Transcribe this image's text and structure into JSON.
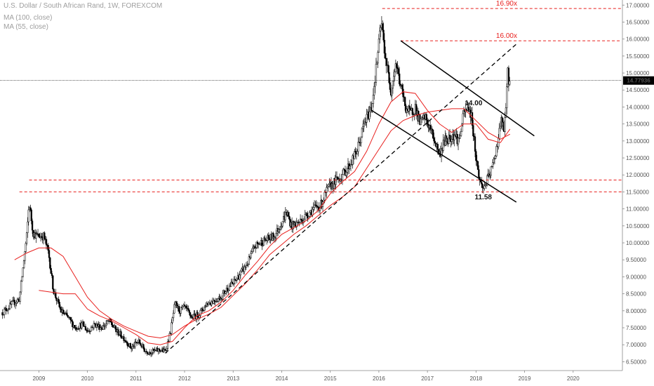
{
  "legend": {
    "title": "U.S. Dollar / South African Rand, 1W, FOREXCOM",
    "ma100": "MA (100, close)",
    "ma55": "MA (55, close)"
  },
  "colors": {
    "candle": "#000000",
    "ma": "#e8201e",
    "level": "#e8201e",
    "trend": "#000000",
    "price_tag_bg": "#000000",
    "price_tag_text": "#ffffff"
  },
  "chart_data": {
    "type": "candlestick",
    "title": "U.S. Dollar / South African Rand, 1W, FOREXCOM",
    "xlim": [
      2008.2,
      2021.0
    ],
    "ylim": [
      6.24,
      17.15
    ],
    "x_ticks": [
      "2009",
      "2010",
      "2011",
      "2012",
      "2013",
      "2014",
      "2015",
      "2016",
      "2017",
      "2018",
      "2019",
      "2020"
    ],
    "y_ticks": [
      "17.00000",
      "16.50000",
      "16.00000",
      "15.50000",
      "15.00000",
      "14.50000",
      "14.00000",
      "13.50000",
      "13.00000",
      "12.50000",
      "12.00000",
      "11.50000",
      "11.00000",
      "10.50000",
      "10.00000",
      "9.50000",
      "9.00000",
      "8.50000",
      "8.00000",
      "7.50000",
      "7.00000",
      "6.50000"
    ],
    "last_price": "14.77936",
    "close_path": [
      [
        2008.25,
        7.95
      ],
      [
        2008.45,
        8.2
      ],
      [
        2008.6,
        8.35
      ],
      [
        2008.75,
        10.2
      ],
      [
        2008.8,
        11.2
      ],
      [
        2008.88,
        10.3
      ],
      [
        2008.95,
        10.2
      ],
      [
        2009.1,
        10.2
      ],
      [
        2009.2,
        9.7
      ],
      [
        2009.3,
        8.6
      ],
      [
        2009.45,
        8.0
      ],
      [
        2009.6,
        7.8
      ],
      [
        2009.75,
        7.5
      ],
      [
        2009.9,
        7.6
      ],
      [
        2010.0,
        7.4
      ],
      [
        2010.15,
        7.6
      ],
      [
        2010.3,
        7.5
      ],
      [
        2010.45,
        7.7
      ],
      [
        2010.6,
        7.4
      ],
      [
        2010.75,
        7.2
      ],
      [
        2010.9,
        6.9
      ],
      [
        2011.05,
        7.1
      ],
      [
        2011.2,
        6.8
      ],
      [
        2011.35,
        6.8
      ],
      [
        2011.5,
        6.85
      ],
      [
        2011.6,
        6.8
      ],
      [
        2011.7,
        7.3
      ],
      [
        2011.8,
        8.2
      ],
      [
        2011.9,
        8.0
      ],
      [
        2012.0,
        8.1
      ],
      [
        2012.15,
        7.8
      ],
      [
        2012.3,
        7.9
      ],
      [
        2012.45,
        8.2
      ],
      [
        2012.6,
        8.3
      ],
      [
        2012.75,
        8.4
      ],
      [
        2012.9,
        8.7
      ],
      [
        2013.0,
        8.8
      ],
      [
        2013.15,
        9.1
      ],
      [
        2013.3,
        9.4
      ],
      [
        2013.45,
        9.9
      ],
      [
        2013.55,
        10.0
      ],
      [
        2013.7,
        10.1
      ],
      [
        2013.85,
        10.2
      ],
      [
        2014.0,
        10.6
      ],
      [
        2014.1,
        10.9
      ],
      [
        2014.2,
        10.5
      ],
      [
        2014.35,
        10.6
      ],
      [
        2014.5,
        10.8
      ],
      [
        2014.65,
        11.0
      ],
      [
        2014.8,
        11.1
      ],
      [
        2014.95,
        11.6
      ],
      [
        2015.1,
        11.8
      ],
      [
        2015.25,
        12.0
      ],
      [
        2015.4,
        12.3
      ],
      [
        2015.55,
        12.7
      ],
      [
        2015.7,
        13.5
      ],
      [
        2015.85,
        14.0
      ],
      [
        2015.95,
        15.2
      ],
      [
        2016.05,
        16.5
      ],
      [
        2016.15,
        15.3
      ],
      [
        2016.25,
        14.5
      ],
      [
        2016.35,
        15.3
      ],
      [
        2016.45,
        14.6
      ],
      [
        2016.55,
        14.0
      ],
      [
        2016.65,
        13.8
      ],
      [
        2016.75,
        14.0
      ],
      [
        2016.85,
        13.5
      ],
      [
        2016.95,
        13.7
      ],
      [
        2017.1,
        13.2
      ],
      [
        2017.25,
        12.6
      ],
      [
        2017.35,
        13.0
      ],
      [
        2017.45,
        13.1
      ],
      [
        2017.55,
        13.2
      ],
      [
        2017.65,
        13.0
      ],
      [
        2017.75,
        13.8
      ],
      [
        2017.85,
        14.0
      ],
      [
        2017.92,
        13.6
      ],
      [
        2018.0,
        12.5
      ],
      [
        2018.08,
        11.8
      ],
      [
        2018.15,
        11.6
      ],
      [
        2018.25,
        11.9
      ],
      [
        2018.35,
        12.3
      ],
      [
        2018.45,
        13.0
      ],
      [
        2018.52,
        13.6
      ],
      [
        2018.58,
        13.3
      ],
      [
        2018.63,
        14.3
      ],
      [
        2018.66,
        15.2
      ],
      [
        2018.68,
        14.6
      ],
      [
        2018.7,
        14.77936
      ]
    ],
    "ma100": [
      [
        2008.5,
        9.5
      ],
      [
        2008.75,
        9.7
      ],
      [
        2009.0,
        9.85
      ],
      [
        2009.25,
        9.85
      ],
      [
        2009.5,
        9.6
      ],
      [
        2009.75,
        9.0
      ],
      [
        2010.0,
        8.4
      ],
      [
        2010.25,
        8.0
      ],
      [
        2010.5,
        7.75
      ],
      [
        2010.75,
        7.55
      ],
      [
        2011.0,
        7.4
      ],
      [
        2011.25,
        7.25
      ],
      [
        2011.5,
        7.2
      ],
      [
        2011.75,
        7.3
      ],
      [
        2012.0,
        7.55
      ],
      [
        2012.25,
        7.75
      ],
      [
        2012.5,
        7.9
      ],
      [
        2012.75,
        8.1
      ],
      [
        2013.0,
        8.45
      ],
      [
        2013.25,
        8.8
      ],
      [
        2013.5,
        9.2
      ],
      [
        2013.75,
        9.65
      ],
      [
        2014.0,
        9.95
      ],
      [
        2014.25,
        10.25
      ],
      [
        2014.5,
        10.5
      ],
      [
        2014.75,
        10.8
      ],
      [
        2015.0,
        11.1
      ],
      [
        2015.25,
        11.35
      ],
      [
        2015.5,
        11.65
      ],
      [
        2015.75,
        12.2
      ],
      [
        2016.0,
        12.75
      ],
      [
        2016.25,
        13.3
      ],
      [
        2016.5,
        13.6
      ],
      [
        2016.75,
        13.75
      ],
      [
        2017.0,
        13.85
      ],
      [
        2017.25,
        13.9
      ],
      [
        2017.5,
        13.95
      ],
      [
        2017.75,
        13.95
      ],
      [
        2018.0,
        13.6
      ],
      [
        2018.25,
        13.25
      ],
      [
        2018.5,
        13.05
      ],
      [
        2018.7,
        13.2
      ]
    ],
    "ma55": [
      [
        2009.0,
        8.6
      ],
      [
        2009.25,
        8.55
      ],
      [
        2009.5,
        8.5
      ],
      [
        2009.75,
        8.5
      ],
      [
        2010.0,
        8.05
      ],
      [
        2010.25,
        7.85
      ],
      [
        2010.5,
        7.7
      ],
      [
        2010.75,
        7.5
      ],
      [
        2011.0,
        7.3
      ],
      [
        2011.25,
        7.05
      ],
      [
        2011.5,
        7.0
      ],
      [
        2011.75,
        7.1
      ],
      [
        2012.0,
        7.5
      ],
      [
        2012.25,
        7.85
      ],
      [
        2012.5,
        8.0
      ],
      [
        2012.75,
        8.25
      ],
      [
        2013.0,
        8.6
      ],
      [
        2013.25,
        9.05
      ],
      [
        2013.5,
        9.45
      ],
      [
        2013.75,
        9.9
      ],
      [
        2014.0,
        10.25
      ],
      [
        2014.25,
        10.45
      ],
      [
        2014.5,
        10.65
      ],
      [
        2014.75,
        10.95
      ],
      [
        2015.0,
        11.45
      ],
      [
        2015.25,
        11.8
      ],
      [
        2015.5,
        12.1
      ],
      [
        2015.75,
        12.7
      ],
      [
        2016.0,
        13.5
      ],
      [
        2016.25,
        14.15
      ],
      [
        2016.5,
        14.45
      ],
      [
        2016.75,
        14.4
      ],
      [
        2017.0,
        13.9
      ],
      [
        2017.25,
        13.5
      ],
      [
        2017.5,
        13.25
      ],
      [
        2017.75,
        13.5
      ],
      [
        2018.0,
        13.5
      ],
      [
        2018.25,
        13.05
      ],
      [
        2018.5,
        12.95
      ],
      [
        2018.7,
        13.35
      ]
    ],
    "trend_lines": [
      {
        "style": "dashed",
        "from": [
          2011.6,
          6.75
        ],
        "to": [
          2018.83,
          15.85
        ]
      },
      {
        "style": "solid",
        "from": [
          2016.45,
          15.95
        ],
        "to": [
          2019.2,
          13.15
        ]
      },
      {
        "style": "solid",
        "from": [
          2015.85,
          13.9
        ],
        "to": [
          2018.83,
          11.2
        ]
      }
    ],
    "horizontal_levels": [
      {
        "value": 16.9,
        "from": 2016.07,
        "label": "16.90x"
      },
      {
        "value": 15.95,
        "from": 2016.45,
        "label": "16.00x"
      },
      {
        "value": 11.85,
        "from": 2008.8,
        "label": ""
      },
      {
        "value": 11.5,
        "from": 2008.6,
        "label": ""
      }
    ],
    "annotations": [
      {
        "text": "14.00",
        "x": 2017.95,
        "y": 14.05
      },
      {
        "text": "11.58",
        "x": 2018.15,
        "y": 11.28
      }
    ]
  }
}
